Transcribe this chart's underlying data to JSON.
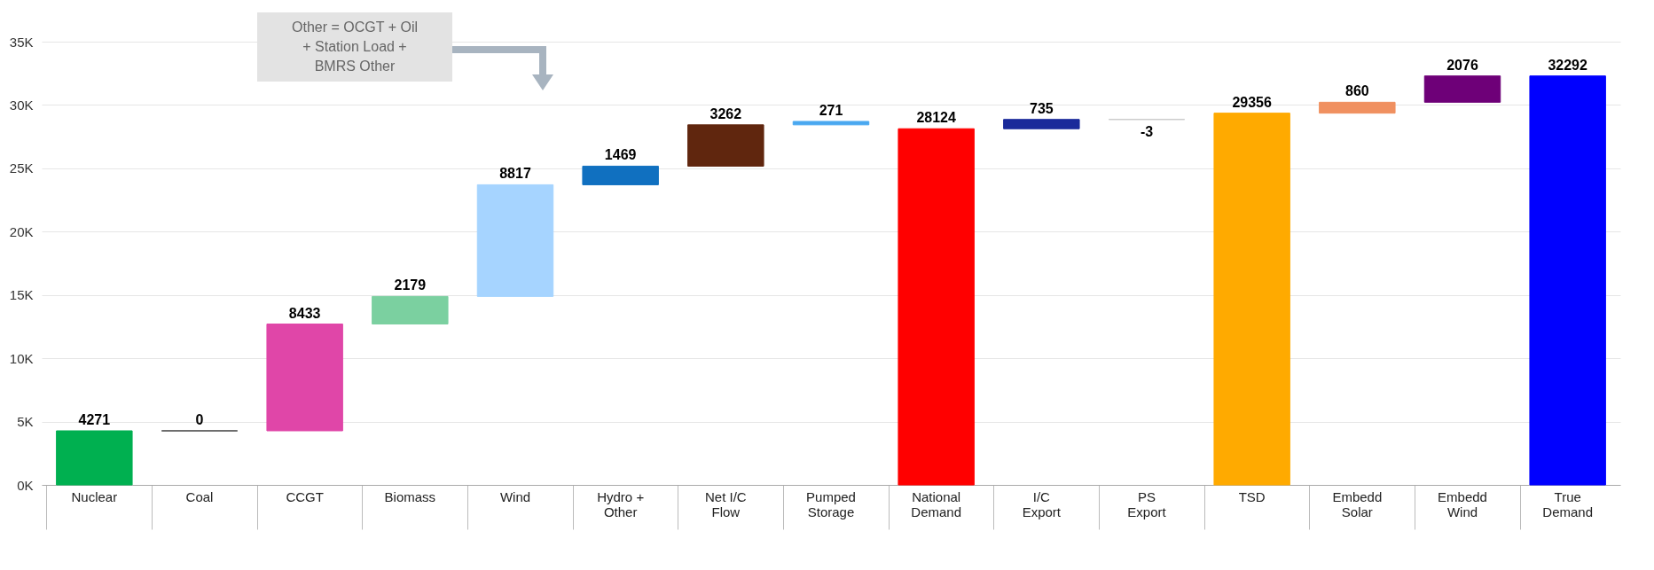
{
  "chart_data": {
    "type": "bar",
    "categories": [
      "Nuclear",
      "Coal",
      "CCGT",
      "Biomass",
      "Wind",
      "Hydro + Other",
      "Net I/C Flow",
      "Pumped Storage",
      "National Demand",
      "I/C Export",
      "PS Export",
      "TSD",
      "Embedd Solar",
      "Embedd Wind",
      "True Demand"
    ],
    "values": [
      4271,
      0,
      8433,
      2179,
      8817,
      1469,
      3262,
      271,
      28124,
      735,
      -3,
      29356,
      860,
      2076,
      32292
    ],
    "base": [
      0,
      4271,
      4271,
      12704,
      14883,
      23700,
      25169,
      28431,
      0,
      28124,
      28859,
      0,
      29356,
      30216,
      0
    ],
    "colors": [
      "#00b050",
      "#404040",
      "#e046a8",
      "#7bd0a0",
      "#a6d4ff",
      "#1070c0",
      "#60260e",
      "#4aa8f0",
      "#ff0000",
      "#1a2a9a",
      "#c8c8c8",
      "#ffaa00",
      "#f09060",
      "#6e0078",
      "#0000ff"
    ],
    "ylim": [
      0,
      35000
    ],
    "yticks": [
      {
        "value": 0,
        "label": "0K"
      },
      {
        "value": 5000,
        "label": "5K"
      },
      {
        "value": 10000,
        "label": "10K"
      },
      {
        "value": 15000,
        "label": "15K"
      },
      {
        "value": 20000,
        "label": "20K"
      },
      {
        "value": 25000,
        "label": "25K"
      },
      {
        "value": 30000,
        "label": "30K"
      },
      {
        "value": 35000,
        "label": "35K"
      }
    ],
    "grid": true,
    "data_labels": true,
    "annotations": [
      "Other = OCGT + Oil + Station Load + BMRS Other"
    ]
  }
}
